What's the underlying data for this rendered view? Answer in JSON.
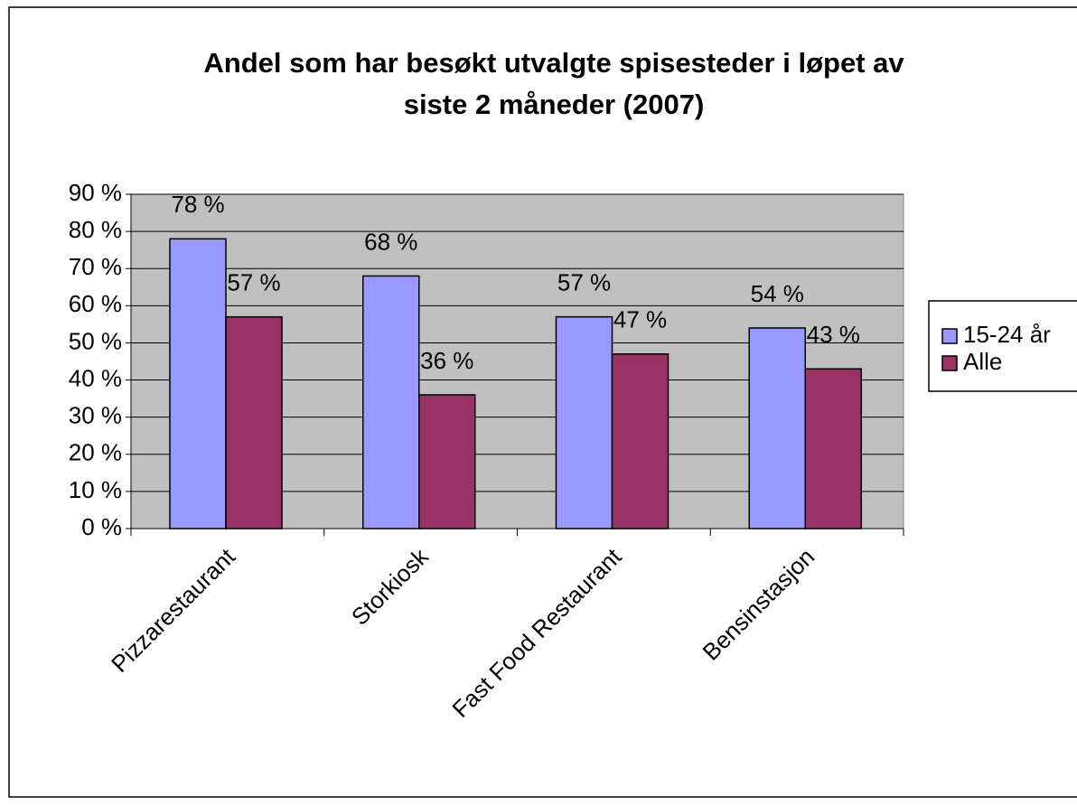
{
  "chart_data": {
    "type": "bar",
    "title": [
      "Andel som har besøkt utvalgte spisesteder i løpet av",
      "siste 2 måneder (2007)"
    ],
    "categories": [
      "Pizzarestaurant",
      "Storkiosk",
      "Fast Food Restaurant",
      "Bensinstasjon"
    ],
    "series": [
      {
        "name": "15-24 år",
        "color": "#9999ff",
        "values": [
          78,
          68,
          57,
          54
        ],
        "value_labels": [
          "78 %",
          "68 %",
          "57 %",
          "54 %"
        ]
      },
      {
        "name": "Alle",
        "color": "#993366",
        "values": [
          57,
          36,
          47,
          43
        ],
        "value_labels": [
          "57 %",
          "36 %",
          "47 %",
          "43 %"
        ]
      }
    ],
    "ylim": [
      0,
      90
    ],
    "yticks": [
      {
        "value": 0,
        "label": "0 %"
      },
      {
        "value": 10,
        "label": "10 %"
      },
      {
        "value": 20,
        "label": "20 %"
      },
      {
        "value": 30,
        "label": "30 %"
      },
      {
        "value": 40,
        "label": "40 %"
      },
      {
        "value": 50,
        "label": "50 %"
      },
      {
        "value": 60,
        "label": "60 %"
      },
      {
        "value": 70,
        "label": "70 %"
      },
      {
        "value": 80,
        "label": "80 %"
      },
      {
        "value": 90,
        "label": "90 %"
      }
    ],
    "grid": true,
    "legend": "right",
    "plot_background": "#c0c0c0"
  }
}
